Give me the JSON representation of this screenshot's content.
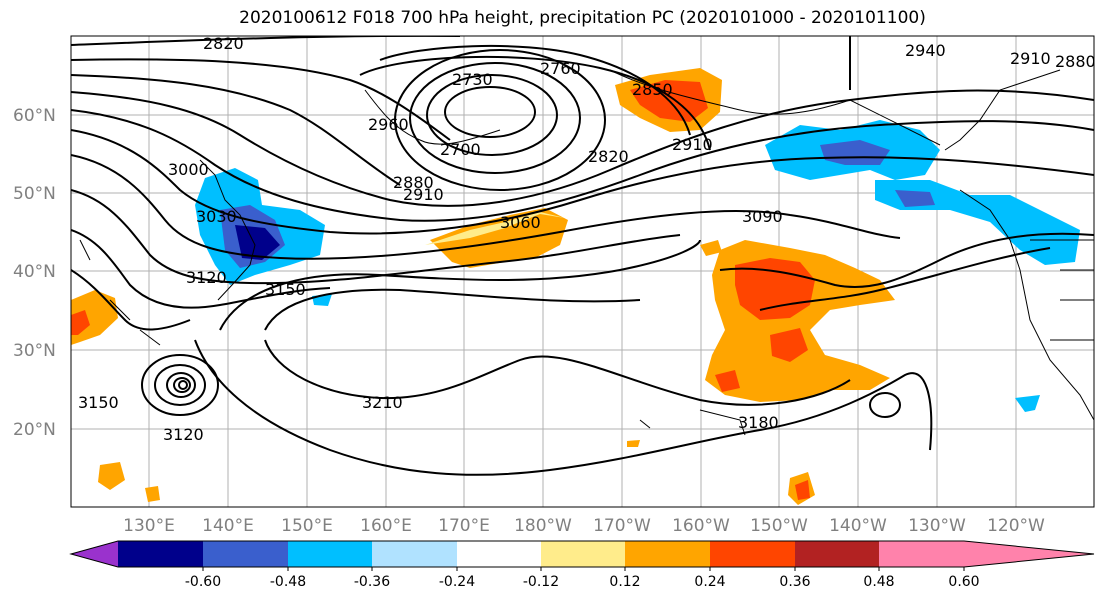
{
  "title": "2020100612 F018 700 hPa height, precipitation PC (2020101000 - 2020101100)",
  "lat_labels": [
    "60°N",
    "50°N",
    "40°N",
    "30°N",
    "20°N"
  ],
  "lon_labels": [
    "130°E",
    "140°E",
    "150°E",
    "160°E",
    "170°E",
    "180°W",
    "170°W",
    "160°W",
    "150°W",
    "140°W",
    "130°W",
    "120°W"
  ],
  "contour_labels": [
    "2820",
    "2730",
    "2760",
    "2850",
    "2940",
    "2910",
    "2880",
    "2960",
    "2700",
    "2820",
    "2910",
    "2880",
    "2910",
    "3000",
    "3030",
    "3060",
    "3090",
    "3120",
    "3150",
    "3150",
    "3210",
    "3180",
    "3120"
  ],
  "colorbar": {
    "tick_labels": [
      "-0.60",
      "-0.48",
      "-0.36",
      "-0.24",
      "-0.12",
      "0.12",
      "0.24",
      "0.36",
      "0.48",
      "0.60"
    ],
    "colors": [
      "#9a32cd",
      "#00008b",
      "#3a5fcd",
      "#00bfff",
      "#b0e2ff",
      "#ffffff",
      "#ffec8b",
      "#ffa500",
      "#ff4500",
      "#b22222",
      "#ff82ab"
    ]
  }
}
